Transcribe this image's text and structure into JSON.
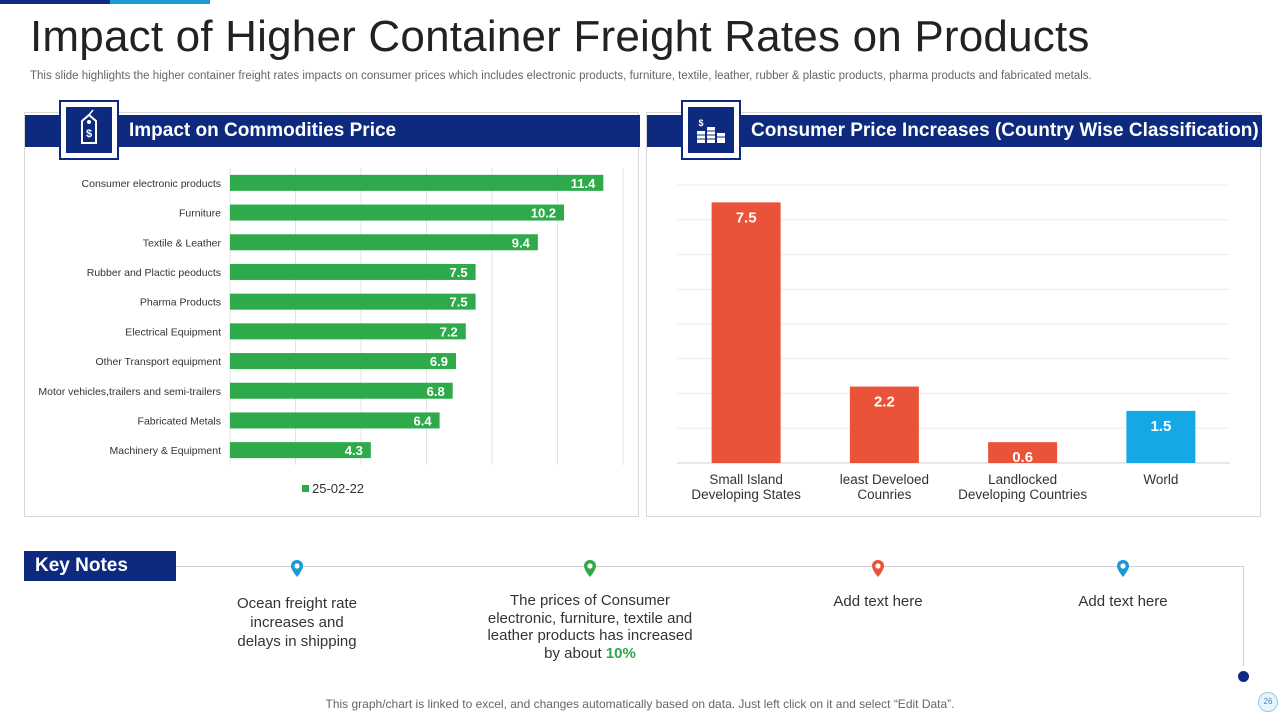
{
  "title": "Impact of Higher Container Freight Rates on Products",
  "subtitle": "This slide highlights the higher container freight rates impacts on consumer prices which includes electronic products, furniture, textile, leather, rubber & plastic products, pharma products and fabricated metals.",
  "left_panel": {
    "header": "Impact on Commodities Price",
    "icon": "price-tag-icon"
  },
  "right_panel": {
    "header": "Consumer Price Increases (Country Wise Classification)",
    "icon": "coin-stacks-icon"
  },
  "chart_data": [
    {
      "type": "bar",
      "orientation": "horizontal",
      "categories": [
        "Consumer electronic products",
        "Furniture",
        "Textile & Leather",
        "Rubber and Plactic peoducts",
        "Pharma Products",
        "Electrical Equipment",
        "Other Transport equipment",
        "Motor vehicles,trailers and semi-trailers",
        "Fabricated Metals",
        "Machinery & Equipment"
      ],
      "series": [
        {
          "name": "25-02-22",
          "values": [
            11.4,
            10.2,
            9.4,
            7.5,
            7.5,
            7.2,
            6.9,
            6.8,
            6.4,
            4.3
          ],
          "color": "#2eaa4a"
        }
      ],
      "xlim": [
        0,
        12
      ],
      "grid": true,
      "legend": "bottom",
      "data_labels": true
    },
    {
      "type": "bar",
      "categories": [
        [
          "Small Island",
          "Developing States"
        ],
        [
          "least Develoed",
          "Counries"
        ],
        [
          "Landlocked",
          "Developing Countries"
        ],
        [
          "World"
        ]
      ],
      "values": [
        7.5,
        2.2,
        0.6,
        1.5
      ],
      "colors": [
        "#e8533a",
        "#e8533a",
        "#e8533a",
        "#14a8e6"
      ],
      "ylim": [
        0,
        8
      ],
      "grid": true,
      "data_labels": true
    }
  ],
  "key_notes": {
    "label": "Key Notes",
    "items": [
      {
        "lines": [
          "Ocean freight rate",
          "increases and",
          "delays in shipping"
        ],
        "pin_color": "#1b9ad6"
      },
      {
        "lines": [
          "The prices of Consumer",
          "electronic, furniture, textile and",
          "leather products has increased"
        ],
        "last_prefix": "by about ",
        "highlight": "10%",
        "pin_color": "#2eaa4a"
      },
      {
        "lines": [
          "Add text here"
        ],
        "pin_color": "#e8533a"
      },
      {
        "lines": [
          "Add text here"
        ],
        "pin_color": "#1b9ad6"
      }
    ]
  },
  "footer": "This graph/chart is linked to excel,  and changes automatically based on data. Just left click on it and select “Edit Data”.",
  "page_number": "26",
  "colors": {
    "brand": "#0d2a7e",
    "accent": "#1b9ad6",
    "green": "#2eaa4a",
    "red": "#e8533a"
  }
}
